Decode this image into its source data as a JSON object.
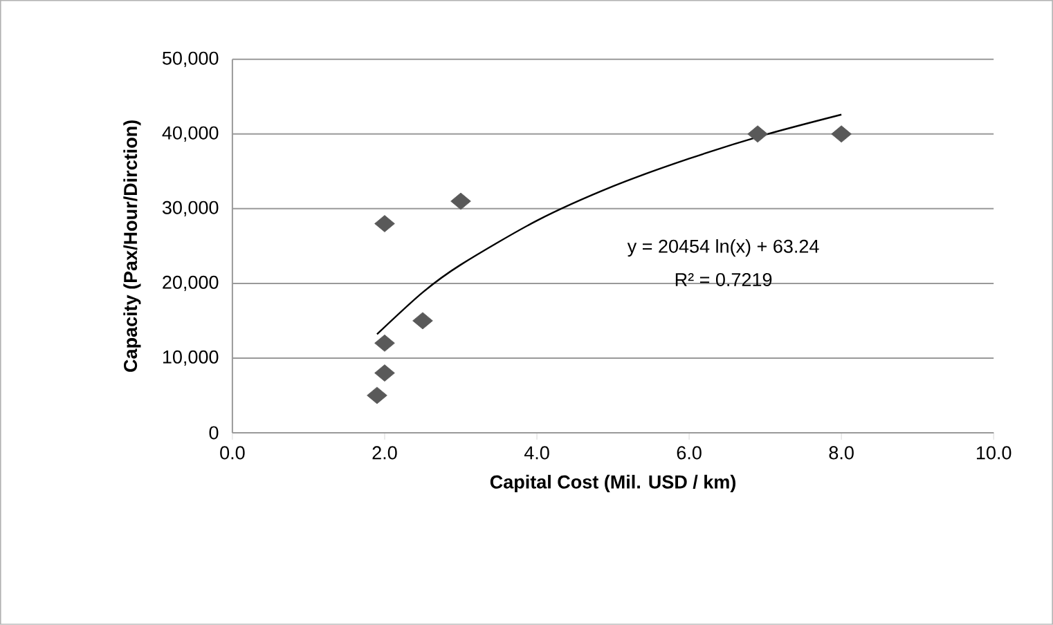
{
  "chart_data": {
    "type": "scatter",
    "xlabel": "Capital Cost (Mil. USD / km)",
    "ylabel": "Capacity (Pax/Hour/Dirction)",
    "series": [
      {
        "color": "#595959",
        "marker": "diamond",
        "x": [
          1.9,
          2.0,
          2.0,
          2.0,
          2.5,
          3.0,
          6.9,
          8.0
        ],
        "values": [
          5000,
          8000,
          12000,
          28000,
          15000,
          31000,
          40000,
          40000
        ]
      },
      {
        "type": "line",
        "color": "#000000",
        "marker": "none",
        "line_style": "solid",
        "x": [
          1.9,
          2.5,
          3.0,
          4.0,
          5.0,
          6.0,
          7.0,
          8.0
        ],
        "values": [
          13200,
          18800,
          22500,
          28400,
          33000,
          36700,
          39900,
          42600
        ]
      }
    ],
    "annotations": [
      "y = 20454 ln(x) + 63.24",
      "R² = 0.7219"
    ],
    "xlim": [
      0,
      10
    ],
    "ylim": [
      0,
      50000
    ],
    "xticks": [
      {
        "value": 0,
        "label": "0.0"
      },
      {
        "value": 2,
        "label": "2.0"
      },
      {
        "value": 4,
        "label": "4.0"
      },
      {
        "value": 6,
        "label": "6.0"
      },
      {
        "value": 8,
        "label": "8.0"
      },
      {
        "value": 10,
        "label": "10.0"
      }
    ],
    "yticks": [
      0,
      {
        "value": 10000,
        "label": "10,000"
      },
      {
        "value": 20000,
        "label": "20,000"
      },
      {
        "value": 30000,
        "label": "30,000"
      },
      {
        "value": 40000,
        "label": "40,000"
      },
      {
        "value": 50000,
        "label": "50,000"
      }
    ],
    "grid": "y"
  }
}
